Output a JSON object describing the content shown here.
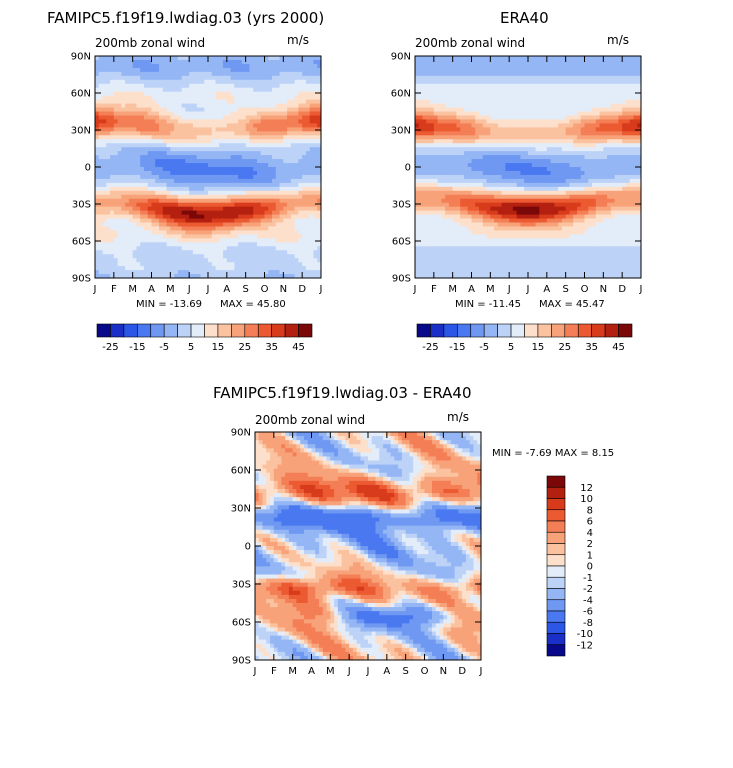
{
  "chart_data": [
    {
      "type": "heatmap",
      "id": "model",
      "title": "FAMIPC5.f19f19.lwdiag.03 (yrs 2000)",
      "subtitle": "200mb zonal wind",
      "units": "m/s",
      "x_ticks": [
        "J",
        "F",
        "M",
        "A",
        "M",
        "J",
        "J",
        "A",
        "S",
        "O",
        "N",
        "D",
        "J"
      ],
      "y_ticks": [
        "90N",
        "60N",
        "30N",
        "0",
        "30S",
        "60S",
        "90S"
      ],
      "min_label": "MIN = -13.69",
      "max_label": "MAX =  45.80",
      "min": -13.69,
      "max": 45.8,
      "field": {
        "jet_n_lat": 33,
        "jet_s_lat": -33,
        "jet_n_strength": 38,
        "jet_s_strength": 45.8,
        "eq_min": -13.69
      }
    },
    {
      "type": "heatmap",
      "id": "obs",
      "title": "ERA40",
      "subtitle": "200mb zonal wind",
      "units": "m/s",
      "x_ticks": [
        "J",
        "F",
        "M",
        "A",
        "M",
        "J",
        "J",
        "A",
        "S",
        "O",
        "N",
        "D",
        "J"
      ],
      "y_ticks": [
        "90N",
        "60N",
        "30N",
        "0",
        "30S",
        "60S",
        "90S"
      ],
      "min_label": "MIN = -11.45",
      "max_label": "MAX =  45.47",
      "min": -11.45,
      "max": 45.47,
      "field": {
        "jet_n_lat": 30,
        "jet_s_lat": -30,
        "jet_n_strength": 40,
        "jet_s_strength": 45.47,
        "eq_min": -11.45
      }
    },
    {
      "type": "heatmap",
      "id": "diff",
      "title": "FAMIPC5.f19f19.lwdiag.03 - ERA40",
      "subtitle": "200mb zonal wind",
      "units": "m/s",
      "x_ticks": [
        "J",
        "F",
        "M",
        "A",
        "M",
        "J",
        "J",
        "A",
        "S",
        "O",
        "N",
        "D",
        "J"
      ],
      "y_ticks": [
        "90N",
        "60N",
        "30N",
        "0",
        "30S",
        "60S",
        "90S"
      ],
      "minmax_label": "MIN =   -7.69 MAX =    8.15",
      "min": -7.69,
      "max": 8.15
    }
  ],
  "colorbar_main": {
    "labels": [
      "-25",
      "-15",
      "-5",
      "5",
      "15",
      "25",
      "35",
      "45"
    ],
    "levels": [
      -25,
      -20,
      -15,
      -10,
      -5,
      0,
      5,
      10,
      15,
      20,
      25,
      30,
      35,
      40,
      45
    ],
    "colors": [
      "#08088a",
      "#1a2fc8",
      "#2c56e6",
      "#4a78f0",
      "#6e98f2",
      "#95b6f5",
      "#bcd2f7",
      "#e3ecf9",
      "#fde0cc",
      "#fbc2a0",
      "#f8a27a",
      "#f47e55",
      "#ec5a32",
      "#d83a1c",
      "#b42010",
      "#7a0808"
    ]
  },
  "colorbar_diff": {
    "labels": [
      "12",
      "10",
      "8",
      "6",
      "4",
      "2",
      "1",
      "0",
      "-1",
      "-2",
      "-4",
      "-6",
      "-8",
      "-10",
      "-12"
    ],
    "levels": [
      12,
      10,
      8,
      6,
      4,
      2,
      1,
      0,
      -1,
      -2,
      -4,
      -6,
      -8,
      -10,
      -12
    ],
    "colors": [
      "#7a0808",
      "#b42010",
      "#d83a1c",
      "#ec5a32",
      "#f47e55",
      "#f8a27a",
      "#fbc2a0",
      "#fde0cc",
      "#e3ecf9",
      "#bcd2f7",
      "#95b6f5",
      "#6e98f2",
      "#4a78f0",
      "#2c56e6",
      "#1a2fc8",
      "#08088a"
    ]
  }
}
